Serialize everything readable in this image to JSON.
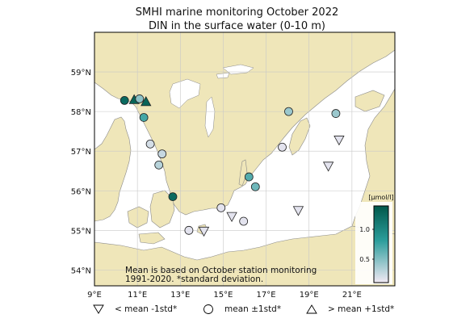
{
  "title_line1": "SMHI marine monitoring October 2022",
  "title_line2": "DIN in the surface water (0-10 m)",
  "lat_labels": [
    "59°N",
    "58°N",
    "57°N",
    "56°N",
    "55°N",
    "54°N"
  ],
  "lon_labels": [
    "9°E",
    "11°E",
    "13°E",
    "15°E",
    "17°E",
    "19°E",
    "21°E"
  ],
  "footnote_line1": "Mean is based on October station monitoring",
  "footnote_line2": "1991-2020. *standard deviation.",
  "colorbar": {
    "unit": "[µmol/l]",
    "ticks": [
      "1.0",
      "0.5"
    ],
    "color_high": "#00584a",
    "color_mid": "#2b9d9b",
    "color_low": "#f1e9f4"
  },
  "legend": [
    {
      "symbol": "triangle-down",
      "label": "< mean -1std*"
    },
    {
      "symbol": "circle",
      "label": "mean ±1std*"
    },
    {
      "symbol": "triangle-up",
      "label": "> mean +1std*"
    }
  ],
  "colors": {
    "land": "#efe6b9",
    "sea": "#ffffff",
    "grid": "#c8c8c8",
    "coast": "#8a8a8a"
  },
  "stations": [
    {
      "lon": 10.4,
      "lat": 58.28,
      "symbol": "circle",
      "value": 1.1
    },
    {
      "lon": 10.85,
      "lat": 58.3,
      "symbol": "triangle-up",
      "value": 1.15
    },
    {
      "lon": 11.1,
      "lat": 58.32,
      "symbol": "circle",
      "value": 0.35
    },
    {
      "lon": 11.4,
      "lat": 58.25,
      "symbol": "triangle-up",
      "value": 1.15
    },
    {
      "lon": 11.3,
      "lat": 57.85,
      "symbol": "circle",
      "value": 0.6
    },
    {
      "lon": 11.6,
      "lat": 57.18,
      "symbol": "circle",
      "value": 0.1
    },
    {
      "lon": 12.15,
      "lat": 56.93,
      "symbol": "circle",
      "value": 0.15
    },
    {
      "lon": 12.0,
      "lat": 56.65,
      "symbol": "circle",
      "value": 0.2
    },
    {
      "lon": 12.65,
      "lat": 55.85,
      "symbol": "circle",
      "value": 1.1
    },
    {
      "lon": 13.4,
      "lat": 55.0,
      "symbol": "circle",
      "value": 0.05
    },
    {
      "lon": 14.1,
      "lat": 54.98,
      "symbol": "triangle-down",
      "value": 0.05
    },
    {
      "lon": 14.9,
      "lat": 55.57,
      "symbol": "circle",
      "value": 0.05
    },
    {
      "lon": 15.4,
      "lat": 55.35,
      "symbol": "triangle-down",
      "value": 0.05
    },
    {
      "lon": 15.95,
      "lat": 55.23,
      "symbol": "circle",
      "value": 0.05
    },
    {
      "lon": 16.2,
      "lat": 56.35,
      "symbol": "circle",
      "value": 0.55
    },
    {
      "lon": 16.5,
      "lat": 56.1,
      "symbol": "circle",
      "value": 0.45
    },
    {
      "lon": 17.75,
      "lat": 57.1,
      "symbol": "circle",
      "value": 0.05
    },
    {
      "lon": 18.05,
      "lat": 58.0,
      "symbol": "circle",
      "value": 0.3
    },
    {
      "lon": 18.5,
      "lat": 55.5,
      "symbol": "triangle-down",
      "value": 0.05
    },
    {
      "lon": 19.9,
      "lat": 56.62,
      "symbol": "triangle-down",
      "value": 0.05
    },
    {
      "lon": 20.25,
      "lat": 57.95,
      "symbol": "circle",
      "value": 0.3
    },
    {
      "lon": 20.4,
      "lat": 57.28,
      "symbol": "triangle-down",
      "value": 0.05
    }
  ]
}
